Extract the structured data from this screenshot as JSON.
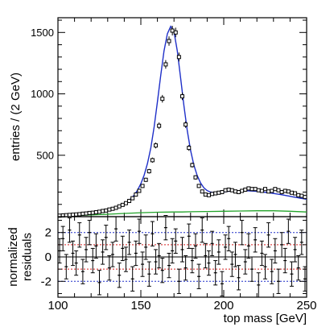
{
  "chart_data": [
    {
      "type": "scatter",
      "panel": "main",
      "ylabel": "entries / (2 GeV)",
      "xlim": [
        100,
        250
      ],
      "ylim": [
        0,
        1620
      ],
      "yticks": [
        500,
        1000,
        1500
      ],
      "bin_width": 2,
      "series": [
        {
          "x": [
            101,
            103,
            105,
            107,
            109,
            111,
            113,
            115,
            117,
            119,
            121,
            123,
            125,
            127,
            129,
            131,
            133,
            135,
            137,
            139,
            141,
            143,
            145,
            147,
            149,
            151,
            153,
            155,
            157,
            159,
            161,
            163,
            165,
            167,
            169,
            171,
            173,
            175,
            177,
            179,
            181,
            183,
            185,
            187,
            189,
            191,
            193,
            195,
            197,
            199,
            201,
            203,
            205,
            207,
            209,
            211,
            213,
            215,
            217,
            219,
            221,
            223,
            225,
            227,
            229,
            231,
            233,
            235,
            237,
            239,
            241,
            243,
            245,
            247,
            249
          ],
          "y": [
            8,
            10,
            12,
            14,
            16,
            18,
            20,
            24,
            26,
            30,
            32,
            36,
            40,
            46,
            50,
            58,
            64,
            72,
            84,
            96,
            110,
            128,
            150,
            180,
            210,
            250,
            300,
            370,
            460,
            580,
            740,
            960,
            1240,
            1430,
            1515,
            1500,
            1300,
            980,
            750,
            560,
            420,
            320,
            250,
            205,
            180,
            175,
            185,
            190,
            195,
            200,
            215,
            220,
            215,
            205,
            200,
            210,
            220,
            230,
            225,
            225,
            215,
            210,
            225,
            205,
            210,
            225,
            215,
            200,
            210,
            205,
            195,
            190,
            175,
            170,
            160
          ],
          "yerr": [
            3,
            3,
            4,
            4,
            4,
            4,
            5,
            5,
            5,
            6,
            6,
            6,
            6,
            7,
            7,
            8,
            8,
            9,
            9,
            10,
            11,
            11,
            12,
            13,
            15,
            16,
            17,
            19,
            21,
            24,
            27,
            31,
            35,
            38,
            39,
            39,
            36,
            31,
            27,
            24,
            20,
            18,
            16,
            14,
            13,
            13,
            14,
            14,
            14,
            14,
            15,
            15,
            15,
            14,
            14,
            14,
            15,
            15,
            15,
            15,
            15,
            14,
            15,
            14,
            14,
            15,
            15,
            14,
            14,
            14,
            14,
            14,
            13,
            13,
            13
          ]
        },
        {
          "x": [
            100,
            102,
            104,
            106,
            108,
            110,
            112,
            114,
            116,
            118,
            120,
            122,
            124,
            126,
            128,
            130,
            132,
            134,
            136,
            138,
            140,
            142,
            144,
            146,
            148,
            150,
            152,
            154,
            156,
            158,
            160,
            162,
            164,
            166,
            168,
            170,
            172,
            174,
            176,
            178,
            180,
            182,
            184,
            186,
            188,
            190,
            192,
            194,
            196,
            198,
            200,
            202,
            204,
            206,
            208,
            210,
            212,
            214,
            216,
            218,
            220,
            222,
            224,
            226,
            228,
            230,
            232,
            234,
            236,
            238,
            240,
            242,
            244,
            246,
            248,
            250
          ],
          "y": [
            12,
            13,
            14,
            15,
            17,
            18,
            20,
            22,
            24,
            27,
            30,
            33,
            37,
            41,
            46,
            52,
            59,
            67,
            77,
            89,
            104,
            122,
            146,
            176,
            216,
            268,
            338,
            432,
            560,
            730,
            935,
            1150,
            1350,
            1490,
            1550,
            1505,
            1350,
            1130,
            900,
            700,
            540,
            420,
            335,
            275,
            235,
            212,
            200,
            196,
            196,
            198,
            201,
            205,
            208,
            210,
            211,
            212,
            212,
            211,
            210,
            208,
            206,
            203,
            200,
            197,
            193,
            189,
            185,
            181,
            176,
            171,
            166,
            161,
            156,
            151,
            146,
            141
          ],
          "color": "#1e2fc8"
        },
        {
          "x": [
            100,
            110,
            120,
            130,
            140,
            150,
            160,
            170,
            175,
            180,
            190,
            200,
            210,
            220,
            230,
            240,
            250
          ],
          "y": [
            4,
            8,
            14,
            20,
            26,
            32,
            36,
            38,
            38,
            40,
            42,
            44,
            46,
            48,
            48,
            44,
            38
          ],
          "color": "#22a32a"
        }
      ]
    },
    {
      "type": "scatter",
      "panel": "residuals",
      "xlabel": "top mass [GeV]",
      "ylabel": "normalized residuals",
      "xlim": [
        100,
        250
      ],
      "ylim": [
        -3.3,
        3.3
      ],
      "xticks": [
        100,
        150,
        200,
        250
      ],
      "yticks": [
        -2,
        0,
        2
      ],
      "reference_lines": [
        {
          "y": 2,
          "color": "#1e2fc8"
        },
        {
          "y": 1,
          "color": "#d62020"
        },
        {
          "y": 0,
          "color": "#000000"
        },
        {
          "y": -1,
          "color": "#d62020"
        },
        {
          "y": -2,
          "color": "#1e2fc8"
        }
      ],
      "series": [
        {
          "x": [
            101,
            103,
            105,
            107,
            109,
            111,
            113,
            115,
            117,
            119,
            121,
            123,
            125,
            127,
            129,
            131,
            133,
            135,
            137,
            139,
            141,
            143,
            145,
            147,
            149,
            151,
            153,
            155,
            157,
            159,
            161,
            163,
            165,
            167,
            169,
            171,
            173,
            175,
            177,
            179,
            181,
            183,
            185,
            187,
            189,
            191,
            193,
            195,
            197,
            199,
            201,
            203,
            205,
            207,
            209,
            211,
            213,
            215,
            217,
            219,
            221,
            223,
            225,
            227,
            229,
            231,
            233,
            235,
            237,
            239,
            241,
            243,
            245,
            247,
            249
          ],
          "y": [
            0.5,
            1.5,
            -0.8,
            2.2,
            0.3,
            -0.5,
            1.8,
            -1.2,
            0.6,
            2.0,
            -0.3,
            0.9,
            -2.1,
            0.4,
            1.6,
            -0.9,
            0.2,
            2.3,
            -1.5,
            0.7,
            -0.2,
            1.2,
            -1.8,
            0.3,
            2.1,
            -0.6,
            0.8,
            -1.4,
            1.9,
            -0.4,
            0.1,
            -1.1,
            2.4,
            -0.7,
            0.5,
            1.3,
            -2.0,
            0.6,
            -0.9,
            1.7,
            -0.3,
            0.9,
            -1.6,
            2.2,
            0.1,
            -0.5,
            1.1,
            -1.3,
            0.4,
            -2.2,
            0.8,
            1.5,
            -0.6,
            0.2,
            -1.7,
            2.0,
            -0.4,
            0.9,
            -1.0,
            1.4,
            -2.3,
            0.3,
            -0.8,
            1.8,
            -1.2,
            0.5,
            -2.0,
            1.0,
            -0.3,
            2.1,
            -1.4,
            0.6,
            -0.9,
            1.2,
            -1.8
          ],
          "yerr": 1
        }
      ]
    }
  ]
}
